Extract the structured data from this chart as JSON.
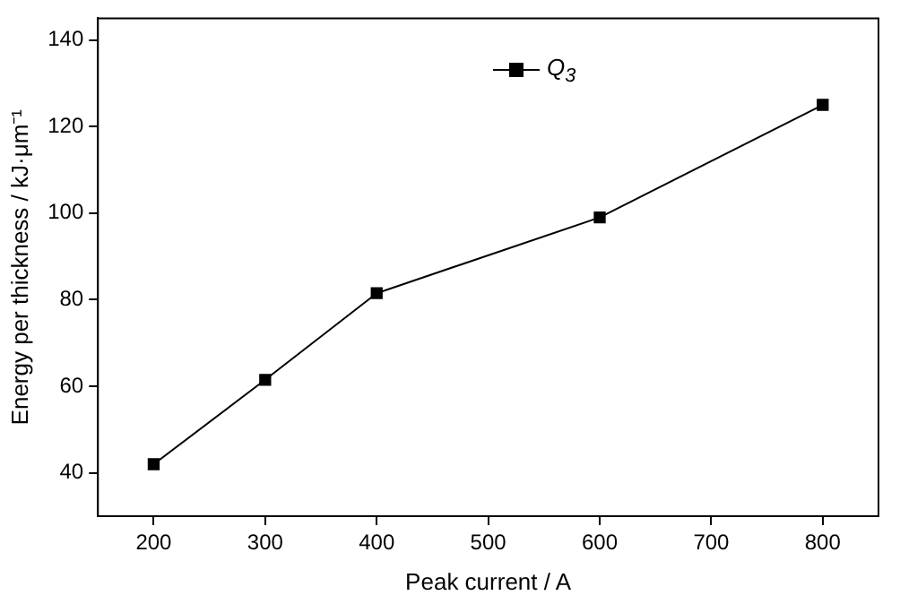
{
  "chart_data": {
    "type": "line",
    "xlabel": "Peak current / A",
    "ylabel": "Energy per thickness / kJ·μm⁻¹",
    "x": [
      200,
      300,
      400,
      600,
      800
    ],
    "series": [
      {
        "name": "Q$_{3}$",
        "color": "#000000",
        "values": [
          42,
          61.5,
          81.5,
          99,
          125
        ]
      }
    ],
    "xlim": [
      150,
      850
    ],
    "xticks": [
      200,
      300,
      400,
      500,
      600,
      700,
      800
    ],
    "ylim": [
      30,
      145
    ],
    "yticks": [
      40,
      60,
      80,
      100,
      120,
      140
    ],
    "grid": false,
    "legend": "top",
    "marker": "square",
    "line_style": "solid"
  }
}
